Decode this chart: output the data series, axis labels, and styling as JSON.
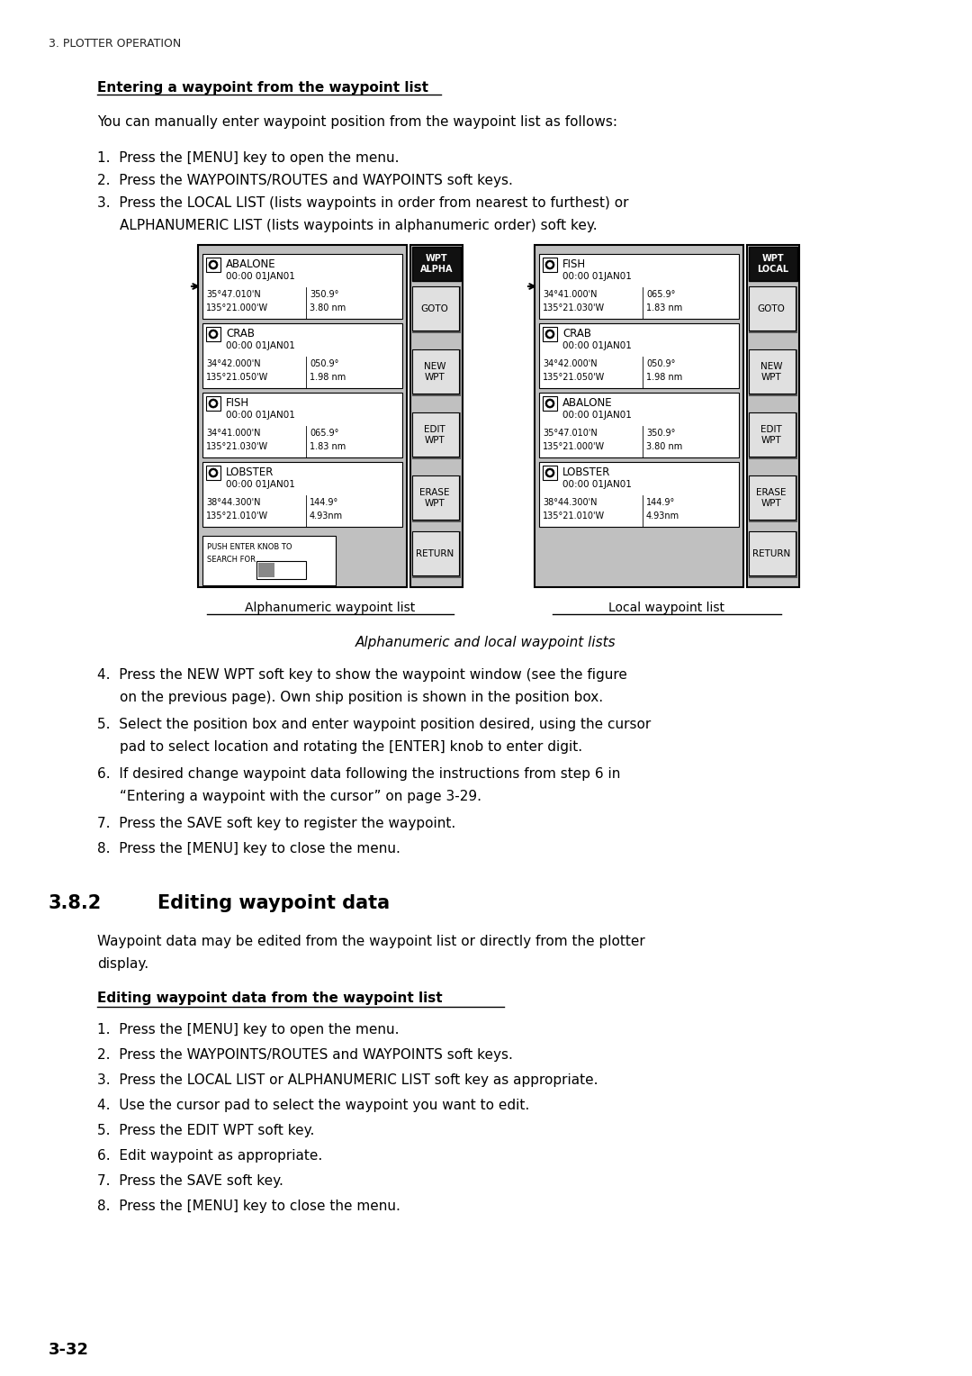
{
  "page_header": "3. PLOTTER OPERATION",
  "section_title": "Entering a waypoint from the waypoint list",
  "intro_text": "You can manually enter waypoint position from the waypoint list as follows:",
  "step1": "Press the [MENU] key to open the menu.",
  "step2": "Press the WAYPOINTS/ROUTES and WAYPOINTS soft keys.",
  "step3a": "Press the LOCAL LIST (lists waypoints in order from nearest to furthest) or",
  "step3b": "ALPHANUMERIC LIST (lists waypoints in alphanumeric order) soft key.",
  "figure_caption": "Alphanumeric and local waypoint lists",
  "alpha_label": "Alphanumeric waypoint list",
  "local_label": "Local waypoint list",
  "step4a": "Press the NEW WPT soft key to show the waypoint window (see the figure",
  "step4b": "on the previous page). Own ship position is shown in the position box.",
  "step5a": "Select the position box and enter waypoint position desired, using the cursor",
  "step5b": "pad to select location and rotating the [ENTER] knob to enter digit.",
  "step6a": "If desired change waypoint data following the instructions from step 6 in",
  "step6b": "“Entering a waypoint with the cursor” on page 3-29.",
  "step7": "Press the SAVE soft key to register the waypoint.",
  "step8": "Press the [MENU] key to close the menu.",
  "section382_num": "3.8.2",
  "section382_title": "Editing waypoint data",
  "section382_body1": "Waypoint data may be edited from the waypoint list or directly from the plotter",
  "section382_body2": "display.",
  "section382_sub": "Editing waypoint data from the waypoint list",
  "edit_step1": "Press the [MENU] key to open the menu.",
  "edit_step2": "Press the WAYPOINTS/ROUTES and WAYPOINTS soft keys.",
  "edit_step3": "Press the LOCAL LIST or ALPHANUMERIC LIST soft key as appropriate.",
  "edit_step4": "Use the cursor pad to select the waypoint you want to edit.",
  "edit_step5": "Press the EDIT WPT soft key.",
  "edit_step6": "Edit waypoint as appropriate.",
  "edit_step7": "Press the SAVE soft key.",
  "edit_step8": "Press the [MENU] key to close the menu.",
  "page_number": "3-32",
  "bg_color": "#ffffff",
  "text_color": "#000000",
  "screen_bg": "#c0c0c0",
  "softkey_bg": "#e0e0e0",
  "header_bg": "#111111"
}
